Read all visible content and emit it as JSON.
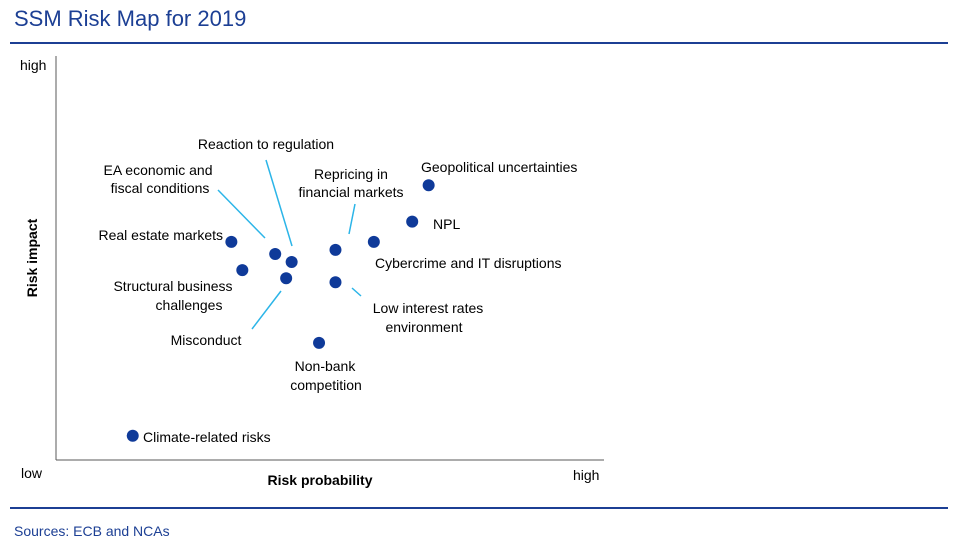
{
  "header": {
    "title": "SSM Risk Map for 2019"
  },
  "footer": {
    "source": "Sources: ECB and NCAs"
  },
  "chart_data": {
    "type": "scatter",
    "title": "SSM Risk Map for 2019",
    "xlabel": "Risk probability",
    "ylabel": "Risk impact",
    "x_tick_labels": {
      "low": "low",
      "high": "high"
    },
    "y_tick_labels": {
      "low": "low",
      "high": "high"
    },
    "xlim": [
      0,
      10
    ],
    "ylim": [
      0,
      10
    ],
    "grid": false,
    "marker_color": "#0f3a99",
    "points": [
      {
        "label": "Geopolitical uncertainties",
        "x": 6.8,
        "y": 6.8
      },
      {
        "label": "NPL",
        "x": 6.5,
        "y": 5.9
      },
      {
        "label": "Cybercrime and IT disruptions",
        "x": 5.8,
        "y": 5.4
      },
      {
        "label": "Repricing in financial markets",
        "x": 5.1,
        "y": 5.2
      },
      {
        "label": "Reaction to regulation",
        "x": 4.3,
        "y": 4.9
      },
      {
        "label": "EA economic and fiscal conditions",
        "x": 4.0,
        "y": 5.1
      },
      {
        "label": "Real estate markets",
        "x": 3.2,
        "y": 5.4
      },
      {
        "label": "Structural business challenges",
        "x": 3.4,
        "y": 4.7
      },
      {
        "label": "Misconduct",
        "x": 4.2,
        "y": 4.5
      },
      {
        "label": "Low interest rates environment",
        "x": 5.1,
        "y": 4.4
      },
      {
        "label": "Non-bank competition",
        "x": 4.8,
        "y": 2.9
      },
      {
        "label": "Climate-related risks",
        "x": 1.4,
        "y": 0.6
      }
    ]
  }
}
